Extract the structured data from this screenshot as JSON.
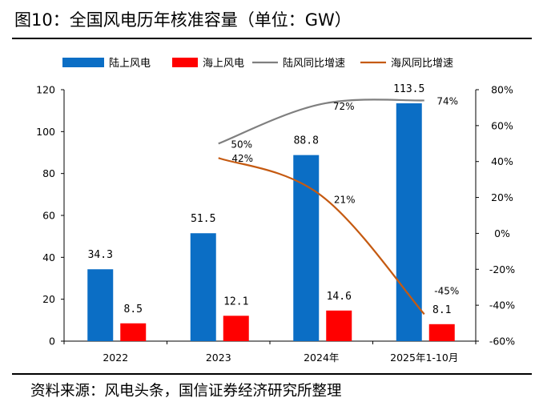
{
  "header": {
    "title": "图10：全国风电历年核准容量（单位：GW）"
  },
  "footer": {
    "source": "资料来源：风电头条，国信证券经济研究所整理"
  },
  "chart_data": {
    "type": "bar",
    "title": "图10：全国风电历年核准容量（单位：GW）",
    "categories": [
      "2022",
      "2023",
      "2024年",
      "2025年1-10月"
    ],
    "ylim": [
      0,
      120
    ],
    "y_ticks": [
      "0",
      "20",
      "40",
      "60",
      "80",
      "100",
      "120"
    ],
    "y2lim": [
      -60,
      80
    ],
    "y2_ticks": [
      "-60%",
      "-40%",
      "-20%",
      "0%",
      "20%",
      "40%",
      "60%",
      "80%"
    ],
    "series": [
      {
        "name": "陆上风电",
        "type": "bar",
        "axis": "left",
        "color": "#0b6ec5",
        "values": [
          34.3,
          51.5,
          88.8,
          113.5
        ],
        "labels": [
          "34.3",
          "51.5",
          "88.8",
          "113.5"
        ]
      },
      {
        "name": "海上风电",
        "type": "bar",
        "axis": "left",
        "color": "#ff0000",
        "values": [
          8.5,
          12.1,
          14.6,
          8.1
        ],
        "labels": [
          "8.5",
          "12.1",
          "14.6",
          "8.1"
        ]
      },
      {
        "name": "陆风同比增速",
        "type": "line",
        "axis": "right",
        "color": "#7f7f7f",
        "values": [
          null,
          50,
          72,
          74
        ],
        "labels": [
          "",
          "50%",
          "72%",
          "74%"
        ]
      },
      {
        "name": "海风同比增速",
        "type": "line",
        "axis": "right",
        "color": "#c55a11",
        "values": [
          null,
          42,
          21,
          -45
        ],
        "labels": [
          "",
          "42%",
          "21%",
          "-45%"
        ]
      }
    ]
  }
}
